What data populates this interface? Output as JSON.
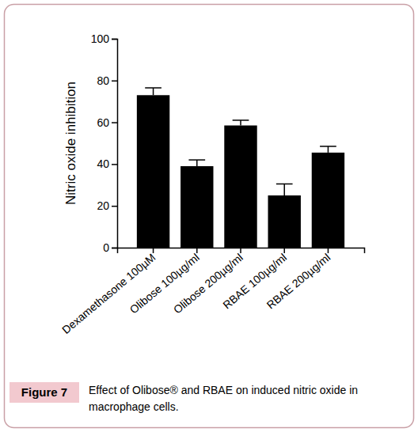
{
  "chart_data": {
    "type": "bar",
    "title": "Effect of Olibose® and RBAE on induced nitric oxide in macrophage cells.",
    "annotations": [
      "Figure 7"
    ],
    "y_label": "Nitric oxide inhibition",
    "categories": [
      "Dexamethasone 100µM",
      "Olibose 100µg/ml",
      "Olibose 200µg/ml",
      "RBAE 100µg/ml",
      "RBAE 200µg/ml"
    ],
    "values": [
      73,
      39,
      58.5,
      25,
      45.5
    ],
    "errors": [
      3.5,
      3,
      2.5,
      5.5,
      3
    ],
    "color": "#000000",
    "ylim": [
      0,
      100
    ],
    "yticks": [
      0,
      20,
      40,
      60,
      80,
      100
    ],
    "grid": false
  }
}
